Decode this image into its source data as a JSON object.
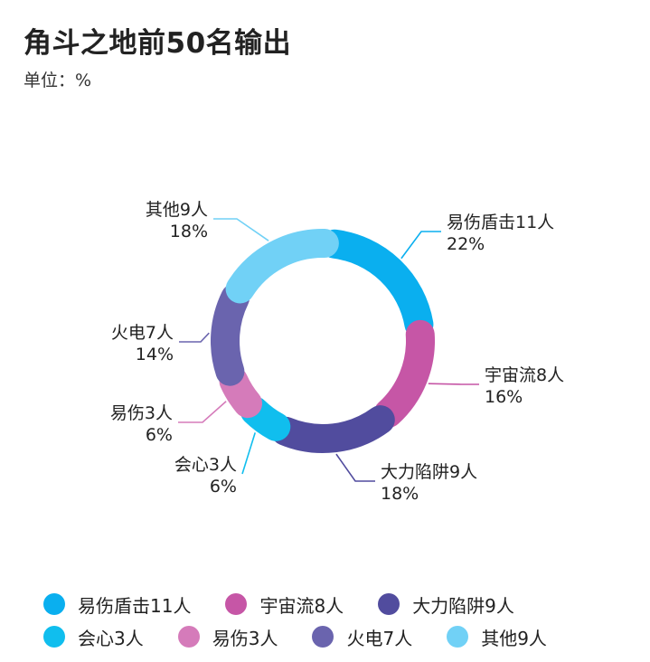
{
  "title": "角斗之地前50名输出",
  "subtitle": "单位：%",
  "chart_data": {
    "type": "pie",
    "style": "rounded donut with gaps",
    "categories": [
      "易伤盾击11人",
      "宇宙流8人",
      "大力陷阱9人",
      "会心3人",
      "易伤3人",
      "火电7人",
      "其他9人"
    ],
    "values": [
      22,
      16,
      18,
      6,
      6,
      14,
      18
    ],
    "value_labels": [
      "22%",
      "16%",
      "18%",
      "6%",
      "6%",
      "14%",
      "18%"
    ],
    "colors": [
      "#0AAFEF",
      "#C656A6",
      "#514C9E",
      "#10BEEE",
      "#D57BBA",
      "#6A64AE",
      "#71D1F6"
    ],
    "legend_position": "bottom"
  }
}
